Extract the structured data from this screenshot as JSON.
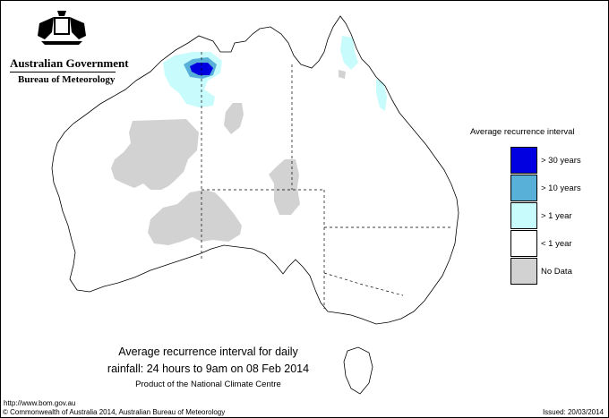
{
  "header": {
    "government": "Australian Government",
    "agency": "Bureau of Meteorology"
  },
  "legend": {
    "title": "Average recurrence interval",
    "items": [
      {
        "label": "> 30 years",
        "color": "#0000e0"
      },
      {
        "label": "> 10 years",
        "color": "#58b0d8"
      },
      {
        "label": "> 1 year",
        "color": "#c8fcfc"
      },
      {
        "label": "< 1 year",
        "color": "#ffffff"
      },
      {
        "label": "No Data",
        "color": "#d2d2d2"
      }
    ]
  },
  "caption": {
    "line1": "Average recurrence interval for daily",
    "line2": "rainfall: 24 hours to 9am on 08 Feb 2014",
    "line3": "Product of the National Climate Centre"
  },
  "footer": {
    "url": "http://www.bom.gov.au",
    "copyright": "© Commonwealth of Australia 2014, Australian Bureau of Meteorology",
    "issued": "Issued: 20/03/2014"
  }
}
